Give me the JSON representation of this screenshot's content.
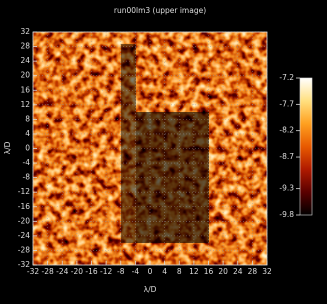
{
  "chart_data": {
    "type": "image",
    "title": "run00lm3 (upper image)",
    "xlabel": "λ/D",
    "ylabel": "λ/D",
    "xlim": [
      -32,
      32
    ],
    "ylim": [
      -32,
      32
    ],
    "xticks": [
      -32,
      -28,
      -24,
      -20,
      -16,
      -12,
      -8,
      -4,
      0,
      4,
      8,
      12,
      16,
      20,
      24,
      28,
      32
    ],
    "yticks": [
      -32,
      -28,
      -24,
      -20,
      -16,
      -12,
      -8,
      -4,
      0,
      4,
      8,
      12,
      16,
      20,
      24,
      28,
      32
    ],
    "grid": true,
    "colorbar": {
      "lim": [
        -9.8,
        -7.2
      ],
      "ticks": [
        -7.2,
        -7.7,
        -8.2,
        -8.7,
        -9.3,
        -9.8
      ],
      "colors": [
        "#000000",
        "#5a0000",
        "#b01a00",
        "#e85a00",
        "#ffa020",
        "#ffe080",
        "#ffffff"
      ]
    }
  }
}
